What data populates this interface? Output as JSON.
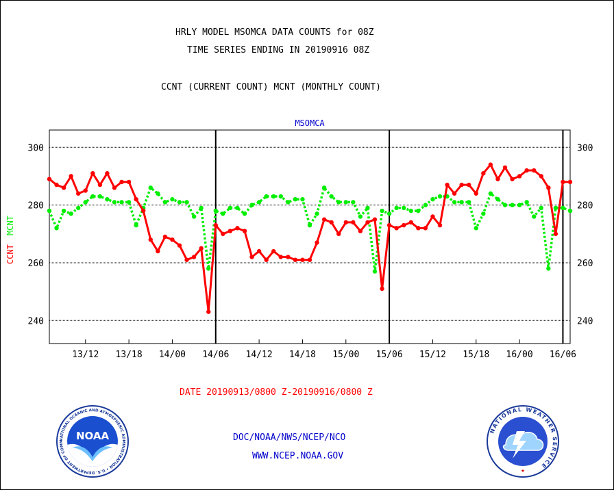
{
  "header": {
    "title_line1": "HRLY MODEL MSOMCA DATA COUNTS for 08Z",
    "title_line2": "TIME SERIES ENDING IN 20190916 08Z",
    "subtitle": "CCNT (CURRENT COUNT) MCNT (MONTHLY COUNT)"
  },
  "footer": {
    "date_range": "DATE 20190913/0800 Z-20190916/0800 Z",
    "org": "DOC/NOAA/NWS/NCEP/NCO",
    "url": "WWW.NCEP.NOAA.GOV"
  },
  "logos": {
    "noaa_text": "NOAA",
    "noaa_ring": "NATIONAL OCEANIC AND ATMOSPHERIC ADMINISTRATION • U.S. DEPARTMENT OF COMMERCE •",
    "nws_ring": "NATIONAL WEATHER SERVICE"
  },
  "colors": {
    "ccnt": "#ff0000",
    "mcnt": "#00ee00",
    "panel_title": "#0000cc",
    "footer_blue": "#0000cc",
    "date_red": "#ff0000"
  },
  "chart_data": {
    "type": "line",
    "title": "MSOMCA",
    "ylabel_ccnt": "CCNT",
    "ylabel_mcnt": "MCNT",
    "ylim": [
      232,
      306
    ],
    "yticks": [
      240,
      260,
      280,
      300
    ],
    "grid": true,
    "x_ticks": [
      {
        "h": 5,
        "label": "13/12"
      },
      {
        "h": 11,
        "label": "13/18"
      },
      {
        "h": 17,
        "label": "14/00"
      },
      {
        "h": 23,
        "label": "14/06"
      },
      {
        "h": 29,
        "label": "14/12"
      },
      {
        "h": 35,
        "label": "14/18"
      },
      {
        "h": 41,
        "label": "15/00"
      },
      {
        "h": 47,
        "label": "15/06"
      },
      {
        "h": 53,
        "label": "15/12"
      },
      {
        "h": 59,
        "label": "15/18"
      },
      {
        "h": 65,
        "label": "16/00"
      },
      {
        "h": 71,
        "label": "16/06"
      }
    ],
    "day_boundaries": [
      23,
      47,
      71
    ],
    "x_range": [
      0,
      72
    ],
    "series": [
      {
        "name": "CCNT",
        "color": "#ff0000",
        "style": "solid",
        "values": [
          289,
          287,
          286,
          290,
          284,
          285,
          291,
          287,
          291,
          286,
          288,
          288,
          282,
          278,
          268,
          264,
          269,
          268,
          266,
          261,
          262,
          265,
          243,
          273,
          270,
          271,
          272,
          271,
          262,
          264,
          261,
          264,
          262,
          262,
          261,
          261,
          261,
          267,
          275,
          274,
          270,
          274,
          274,
          271,
          274,
          275,
          251,
          273,
          272,
          273,
          274,
          272,
          272,
          276,
          273,
          287,
          284,
          287,
          287,
          284,
          291,
          294,
          289,
          293,
          289,
          290,
          292,
          292,
          290,
          286,
          270,
          288,
          288
        ]
      },
      {
        "name": "MCNT",
        "color": "#00ee00",
        "style": "dotted",
        "values": [
          278,
          272,
          278,
          277,
          279,
          281,
          283,
          283,
          282,
          281,
          281,
          281,
          273,
          279,
          286,
          284,
          281,
          282,
          281,
          281,
          276,
          279,
          258,
          278,
          277,
          279,
          279,
          277,
          280,
          281,
          283,
          283,
          283,
          281,
          282,
          282,
          273,
          277,
          286,
          283,
          281,
          281,
          281,
          276,
          279,
          257,
          278,
          277,
          279,
          279,
          278,
          278,
          280,
          282,
          283,
          283,
          281,
          281,
          281,
          272,
          277,
          284,
          282,
          280,
          280,
          280,
          281,
          276,
          279,
          258,
          279,
          279,
          278
        ]
      }
    ]
  }
}
